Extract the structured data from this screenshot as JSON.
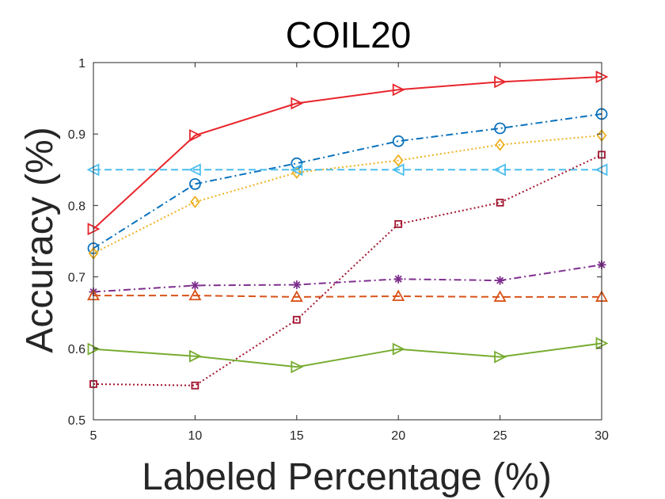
{
  "chart_data": {
    "type": "line",
    "title": "COIL20",
    "xlabel": "Labeled Percentage (%)",
    "ylabel": "Accuracy (%)",
    "xlim": [
      5,
      30
    ],
    "ylim": [
      0.5,
      1.0
    ],
    "xticks": [
      5,
      10,
      15,
      20,
      25,
      30
    ],
    "yticks": [
      0.5,
      0.6,
      0.7,
      0.8,
      0.9,
      1.0
    ],
    "ytick_labels": [
      "0.5",
      "0.6",
      "0.7",
      "0.8",
      "0.9",
      "1"
    ],
    "grid": false,
    "legend": "none",
    "x": [
      5,
      10,
      15,
      20,
      25,
      30
    ],
    "series": [
      {
        "values": [
          0.767,
          0.898,
          0.943,
          0.962,
          0.973,
          0.98
        ],
        "color": "#e8262c",
        "dash": "solid",
        "marker": "triangle-right"
      },
      {
        "values": [
          0.74,
          0.83,
          0.859,
          0.89,
          0.908,
          0.928
        ],
        "color": "#0b72bd",
        "dash": "dashdot",
        "marker": "circle"
      },
      {
        "values": [
          0.733,
          0.805,
          0.846,
          0.863,
          0.885,
          0.898
        ],
        "color": "#edb120",
        "dash": "dotted",
        "marker": "diamond"
      },
      {
        "values": [
          0.85,
          0.85,
          0.85,
          0.85,
          0.85,
          0.85
        ],
        "color": "#4dbeee",
        "dash": "dashed",
        "marker": "triangle-left"
      },
      {
        "values": [
          0.55,
          0.548,
          0.64,
          0.774,
          0.804,
          0.871
        ],
        "color": "#a2142f",
        "dash": "dotted",
        "marker": "square"
      },
      {
        "values": [
          0.679,
          0.688,
          0.689,
          0.697,
          0.695,
          0.717
        ],
        "color": "#7e2f8e",
        "dash": "dashdot",
        "marker": "asterisk"
      },
      {
        "values": [
          0.674,
          0.674,
          0.672,
          0.673,
          0.672,
          0.672
        ],
        "color": "#d95319",
        "dash": "dashed",
        "marker": "triangle-up"
      },
      {
        "values": [
          0.599,
          0.589,
          0.574,
          0.599,
          0.588,
          0.607
        ],
        "color": "#77ac30",
        "dash": "solid",
        "marker": "triangle-right"
      }
    ]
  }
}
